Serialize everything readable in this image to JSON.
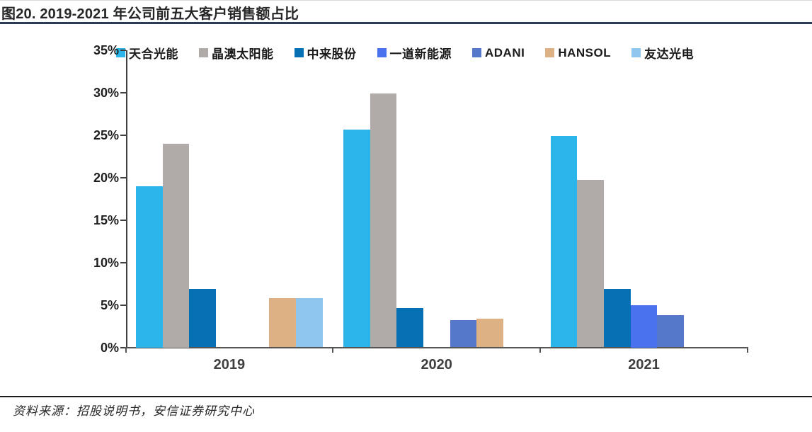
{
  "figure": {
    "title": "图20. 2019-2021 年公司前五大客户销售额占比",
    "source": "资料来源：招股说明书，安信证券研究中心"
  },
  "colors": {
    "title_rule": "#2b3a55",
    "axis": "#404040",
    "source_rule": "#1a1a1a"
  },
  "chart_data": {
    "type": "bar",
    "title": "2019-2021 年公司前五大客户销售额占比",
    "categories": [
      "2019",
      "2020",
      "2021"
    ],
    "series": [
      {
        "name": "天合光能",
        "color": "#2cb5e8",
        "values": [
          19.0,
          25.6,
          24.9
        ]
      },
      {
        "name": "晶澳太阳能",
        "color": "#b0aaa8",
        "values": [
          24.0,
          29.9,
          19.7
        ]
      },
      {
        "name": "中来股份",
        "color": "#0670b4",
        "values": [
          6.9,
          4.6,
          6.9
        ]
      },
      {
        "name": "一道新能源",
        "color": "#4a72ee",
        "values": [
          0,
          0,
          5.0
        ]
      },
      {
        "name": "ADANI",
        "color": "#5578cb",
        "values": [
          0,
          3.2,
          3.8
        ]
      },
      {
        "name": "HANSOL",
        "color": "#deb184",
        "values": [
          5.8,
          3.4,
          0
        ]
      },
      {
        "name": "友达光电",
        "color": "#8fc6ef",
        "values": [
          5.8,
          0,
          0
        ]
      }
    ],
    "xlabel": "",
    "ylabel": "",
    "ylim": [
      0,
      35
    ],
    "ytick_step": 5,
    "ytick_suffix": "%",
    "legend_position": "top",
    "grid": false
  }
}
